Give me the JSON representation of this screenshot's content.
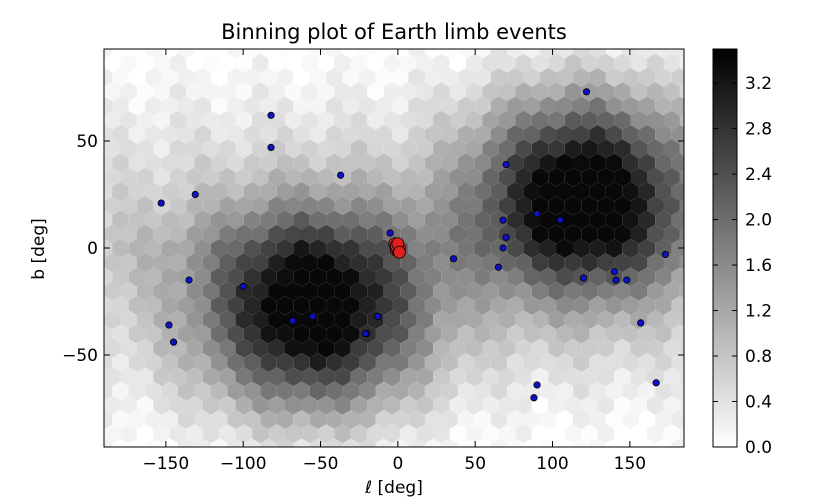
{
  "chart_data": {
    "type": "scatter",
    "title": "Binning plot of Earth limb events",
    "xlabel": "ℓ [deg]",
    "ylabel": "b [deg]",
    "xlim": [
      -190,
      185
    ],
    "ylim": [
      -93,
      93
    ],
    "xticks": [
      -150,
      -100,
      -50,
      0,
      50,
      100,
      150
    ],
    "xtick_labels": [
      "−150",
      "−100",
      "−50",
      "0",
      "50",
      "100",
      "150"
    ],
    "yticks": [
      -50,
      0,
      50
    ],
    "ytick_labels": [
      "−50",
      "0",
      "50"
    ],
    "grid": false,
    "background": {
      "type": "hexbin",
      "colormap": "Greys",
      "vmin": 0.0,
      "vmax": 3.5,
      "peaks": [
        {
          "l": -55,
          "b": -30,
          "value": 3.5
        },
        {
          "l": 120,
          "b": 25,
          "value": 3.5
        }
      ]
    },
    "colorbar": {
      "ticks": [
        0.0,
        0.4,
        0.8,
        1.2,
        1.6,
        2.0,
        2.4,
        2.8,
        3.2
      ],
      "tick_labels": [
        "0.0",
        "0.4",
        "0.8",
        "1.2",
        "1.6",
        "2.0",
        "2.4",
        "2.8",
        "3.2"
      ],
      "range": [
        0.0,
        3.5
      ]
    },
    "series": [
      {
        "color": "#1010c8",
        "marker": "small-circle",
        "points": [
          [
            -82,
            62
          ],
          [
            -82,
            47
          ],
          [
            -37,
            34
          ],
          [
            -131,
            25
          ],
          [
            -153,
            21
          ],
          [
            -5,
            7
          ],
          [
            -135,
            -15
          ],
          [
            -100,
            -18
          ],
          [
            -148,
            -36
          ],
          [
            -145,
            -44
          ],
          [
            -68,
            -34
          ],
          [
            -55,
            -32
          ],
          [
            -13,
            -32
          ],
          [
            -20,
            -40
          ],
          [
            -21,
            -40
          ],
          [
            36,
            -5
          ],
          [
            65,
            -9
          ],
          [
            68,
            0
          ],
          [
            70,
            5
          ],
          [
            68,
            13
          ],
          [
            70,
            39
          ],
          [
            90,
            16
          ],
          [
            105,
            13
          ],
          [
            122,
            73
          ],
          [
            120,
            -14
          ],
          [
            140,
            -11
          ],
          [
            141,
            -15
          ],
          [
            148,
            -15
          ],
          [
            157,
            -35
          ],
          [
            167,
            -63
          ],
          [
            173,
            -3
          ],
          [
            90,
            -64
          ],
          [
            88,
            -70
          ]
        ]
      },
      {
        "color": "#e02020",
        "marker": "large-circle",
        "points": [
          [
            -2,
            2
          ],
          [
            0,
            1
          ],
          [
            -1,
            -1
          ],
          [
            0,
            -1
          ],
          [
            1,
            0
          ],
          [
            -1,
            1
          ],
          [
            0,
            2
          ],
          [
            1,
            -2
          ]
        ]
      }
    ]
  }
}
